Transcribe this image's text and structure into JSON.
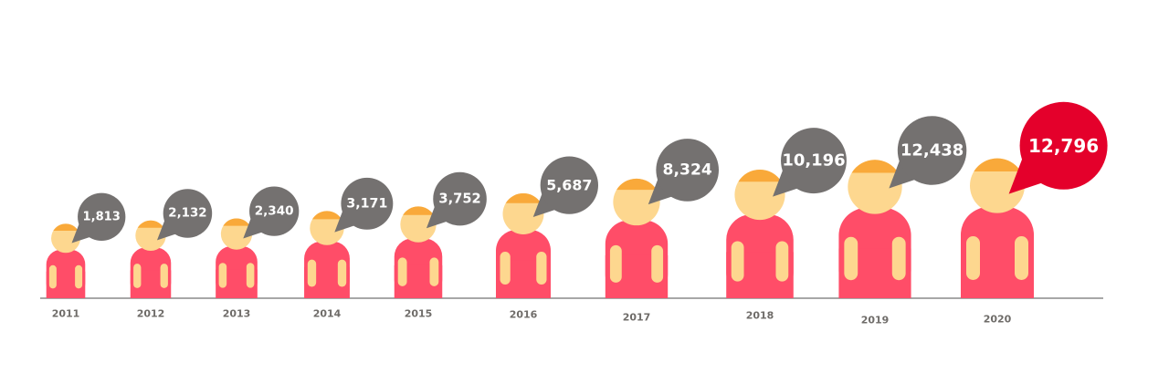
{
  "chart_data": {
    "type": "pictogram",
    "title": "",
    "xlabel": "",
    "ylabel": "",
    "categories": [
      "2011",
      "2012",
      "2013",
      "2014",
      "2015",
      "2016",
      "2017",
      "2018",
      "2019",
      "2020"
    ],
    "values": [
      1813,
      2132,
      2340,
      3171,
      3752,
      5687,
      8324,
      10196,
      12438,
      12796
    ],
    "value_labels": [
      "1,813",
      "2,132",
      "2,340",
      "3,171",
      "3,752",
      "5,687",
      "8,324",
      "10,196",
      "12,438",
      "12,796"
    ],
    "grid": false,
    "legend": "none",
    "highlight_index": 9
  },
  "colors": {
    "body": "#ff4d68",
    "skin": "#fdd78f",
    "hair": "#f9a93a",
    "bubble": "#747170",
    "bubble_highlight": "#e4002b",
    "label_text": "#6f6c69",
    "axis_line": "#8a8a8a"
  }
}
